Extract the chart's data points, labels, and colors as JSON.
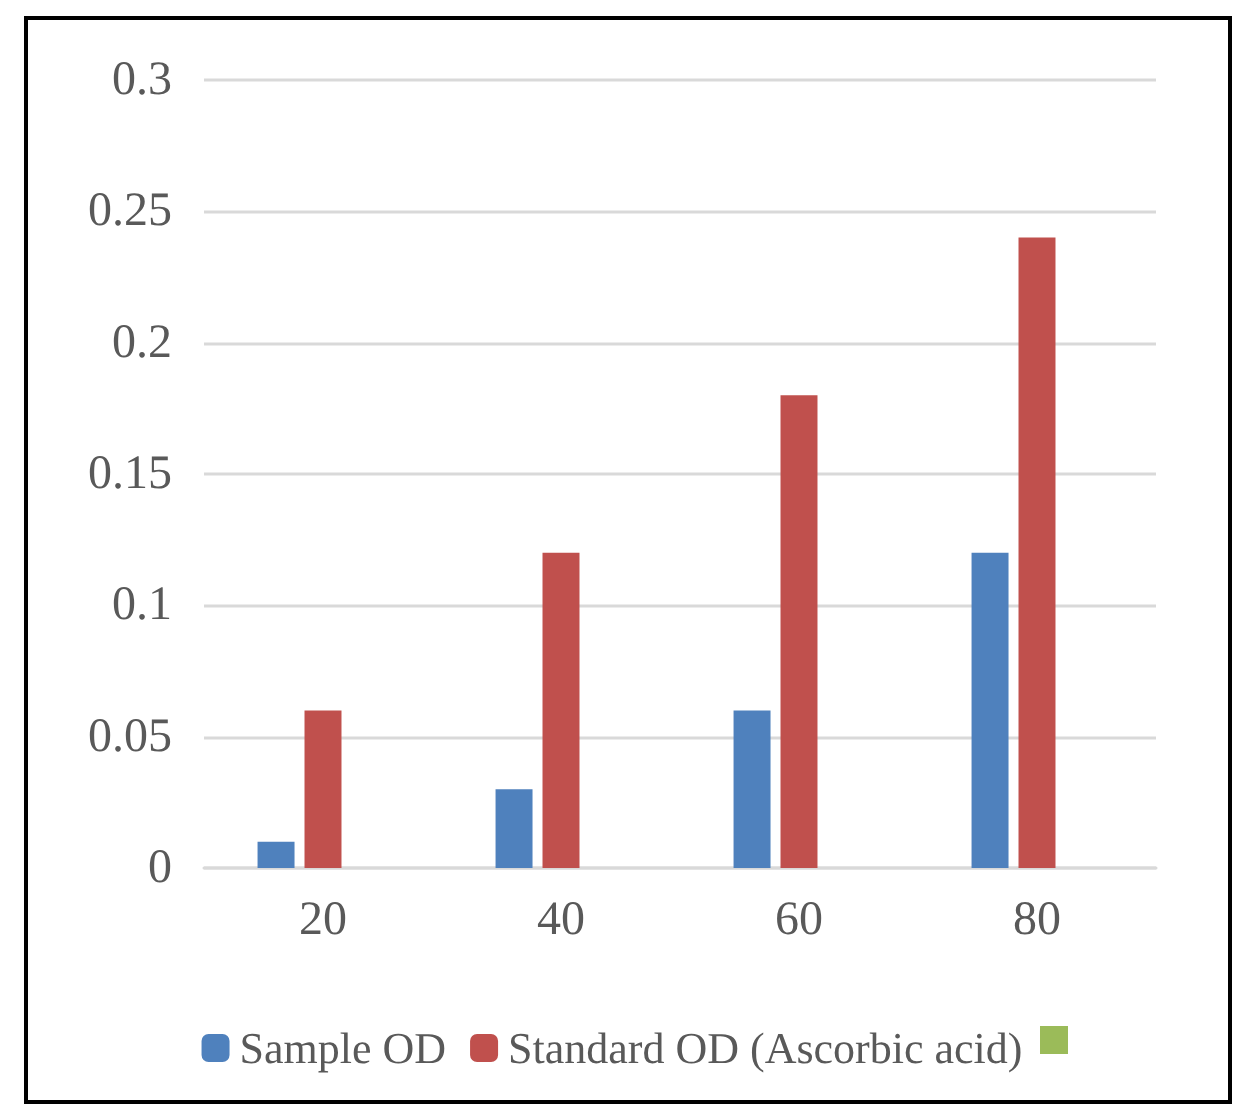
{
  "chart_data": {
    "type": "bar",
    "categories": [
      "20",
      "40",
      "60",
      "80"
    ],
    "series": [
      {
        "name": "Sample OD",
        "color": "#4f81bd",
        "values": [
          0.01,
          0.03,
          0.06,
          0.12
        ]
      },
      {
        "name": "Standard OD (Ascorbic acid)",
        "color": "#c0504d",
        "values": [
          0.06,
          0.12,
          0.18,
          0.24
        ]
      },
      {
        "color": "#9bbb59",
        "values": [
          null,
          null,
          null,
          null
        ]
      }
    ],
    "ylim": [
      0,
      0.3
    ],
    "yticks": [
      0,
      0.05,
      0.1,
      0.15,
      0.2,
      0.25,
      0.3
    ],
    "grid": "y",
    "legend": "bottom"
  }
}
